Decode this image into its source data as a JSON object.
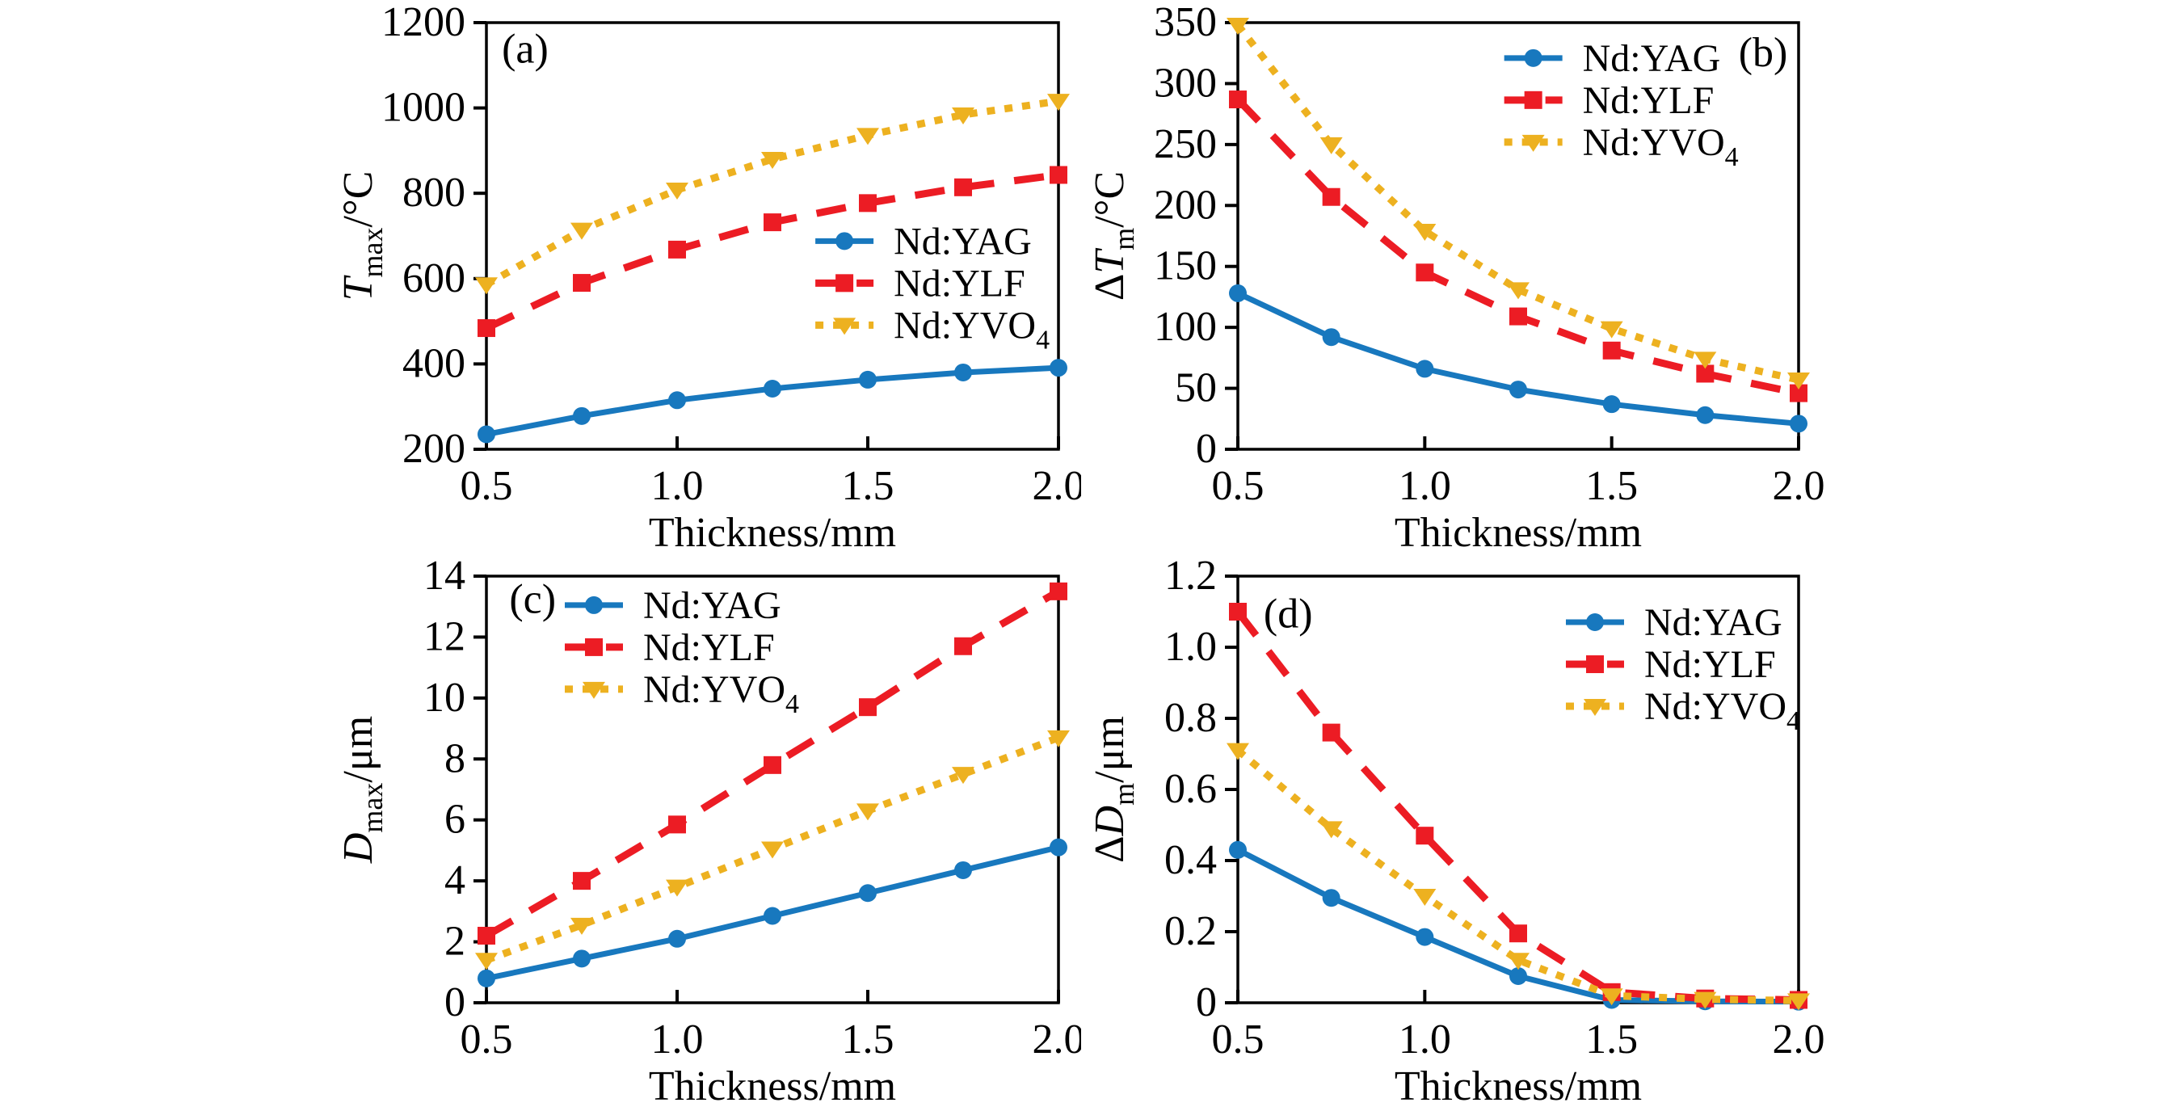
{
  "figure": {
    "background": "#ffffff",
    "description": "Four-panel line chart figure comparing laser crystal properties vs crystal thickness"
  },
  "series_styles": {
    "ndyag": {
      "name": "Nd:YAG",
      "color": "#1878BE",
      "line": "solid",
      "marker": "circle"
    },
    "ndylf": {
      "name": "Nd:YLF",
      "color": "#EC1C24",
      "line": "dashed",
      "marker": "square"
    },
    "ndyvo4": {
      "name": "Nd:YVO4",
      "color": "#EDB120",
      "line": "dotted",
      "marker": "triangle-down"
    }
  },
  "chart_data": [
    {
      "type": "line",
      "panel_label": "(a)",
      "xlabel": "Thickness/mm",
      "ylabel_parts": [
        {
          "text": "T",
          "italic": true
        },
        {
          "text": "max",
          "sub": true
        },
        {
          "text": "/°C"
        }
      ],
      "xlim": [
        0.5,
        2.0
      ],
      "ylim": [
        200,
        1200
      ],
      "xticks": [
        0.5,
        1.0,
        1.5,
        2.0
      ],
      "xtick_labels": [
        "0.5",
        "1.0",
        "1.5",
        "2.0"
      ],
      "yticks": [
        200,
        400,
        600,
        800,
        1000,
        1200
      ],
      "ytick_labels": [
        "200",
        "400",
        "600",
        "800",
        "1000",
        "1200"
      ],
      "grid": false,
      "legend_position_hint": "center-right",
      "legend_pos": {
        "x": 0.575,
        "y": 0.512
      },
      "panel_label_pos": {
        "x": 0.027,
        "y": 0.062
      },
      "x": [
        0.5,
        0.75,
        1.0,
        1.25,
        1.5,
        1.75,
        2.0
      ],
      "series": [
        {
          "key": "ndyag",
          "label_parts": [
            {
              "text": "Nd:YAG"
            }
          ],
          "values": [
            235,
            278,
            315,
            342,
            363,
            380,
            391
          ]
        },
        {
          "key": "ndylf",
          "label_parts": [
            {
              "text": "Nd:YLF"
            }
          ],
          "values": [
            484,
            590,
            668,
            732,
            777,
            814,
            843
          ]
        },
        {
          "key": "ndyvo4",
          "label_parts": [
            {
              "text": "Nd:YVO"
            },
            {
              "text": "4",
              "sub": true
            }
          ],
          "values": [
            586,
            714,
            808,
            880,
            936,
            984,
            1016
          ]
        }
      ]
    },
    {
      "type": "line",
      "panel_label": "(b)",
      "xlabel": "Thickness/mm",
      "ylabel_parts": [
        {
          "text": "Δ"
        },
        {
          "text": "T",
          "italic": true
        },
        {
          "text": "m",
          "sub": true
        },
        {
          "text": "/°C"
        }
      ],
      "xlim": [
        0.5,
        2.0
      ],
      "ylim": [
        0,
        350
      ],
      "xticks": [
        0.5,
        1.0,
        1.5,
        2.0
      ],
      "xtick_labels": [
        "0.5",
        "1.0",
        "1.5",
        "2.0"
      ],
      "yticks": [
        0,
        50,
        100,
        150,
        200,
        250,
        300,
        350
      ],
      "ytick_labels": [
        "0",
        "50",
        "100",
        "150",
        "200",
        "250",
        "300",
        "350"
      ],
      "grid": false,
      "legend_position_hint": "top-center",
      "legend_pos": {
        "x": 0.475,
        "y": 0.083
      },
      "panel_label_pos": {
        "x": 0.893,
        "y": 0.07
      },
      "x": [
        0.5,
        0.75,
        1.0,
        1.25,
        1.5,
        1.75,
        2.0
      ],
      "series": [
        {
          "key": "ndyag",
          "label_parts": [
            {
              "text": "Nd:YAG"
            }
          ],
          "values": [
            128,
            92,
            66,
            49,
            37,
            28,
            21
          ]
        },
        {
          "key": "ndylf",
          "label_parts": [
            {
              "text": "Nd:YLF"
            }
          ],
          "values": [
            287,
            207,
            145,
            109,
            81,
            62,
            46
          ]
        },
        {
          "key": "ndyvo4",
          "label_parts": [
            {
              "text": "Nd:YVO"
            },
            {
              "text": "4",
              "sub": true
            }
          ],
          "values": [
            348,
            250,
            179,
            131,
            99,
            74,
            57
          ]
        }
      ]
    },
    {
      "type": "line",
      "panel_label": "(c)",
      "xlabel": "Thickness/mm",
      "ylabel_parts": [
        {
          "text": "D",
          "italic": true
        },
        {
          "text": "max",
          "sub": true
        },
        {
          "text": "/μm"
        }
      ],
      "xlim": [
        0.5,
        2.0
      ],
      "ylim": [
        0,
        14
      ],
      "xticks": [
        0.5,
        1.0,
        1.5,
        2.0
      ],
      "xtick_labels": [
        "0.5",
        "1.0",
        "1.5",
        "2.0"
      ],
      "yticks": [
        0,
        2,
        4,
        6,
        8,
        10,
        12,
        14
      ],
      "ytick_labels": [
        "0",
        "2",
        "4",
        "6",
        "8",
        "10",
        "12",
        "14"
      ],
      "grid": false,
      "legend_position_hint": "top-left",
      "legend_pos": {
        "x": 0.137,
        "y": 0.068
      },
      "panel_label_pos": {
        "x": 0.04,
        "y": 0.054
      },
      "x": [
        0.5,
        0.75,
        1.0,
        1.25,
        1.5,
        1.75,
        2.0
      ],
      "series": [
        {
          "key": "ndyag",
          "label_parts": [
            {
              "text": "Nd:YAG"
            }
          ],
          "values": [
            0.8,
            1.45,
            2.1,
            2.85,
            3.6,
            4.35,
            5.1
          ]
        },
        {
          "key": "ndylf",
          "label_parts": [
            {
              "text": "Nd:YLF"
            }
          ],
          "values": [
            2.2,
            4.0,
            5.85,
            7.8,
            9.7,
            11.7,
            13.5
          ]
        },
        {
          "key": "ndyvo4",
          "label_parts": [
            {
              "text": "Nd:YVO"
            },
            {
              "text": "4",
              "sub": true
            }
          ],
          "values": [
            1.4,
            2.55,
            3.8,
            5.05,
            6.3,
            7.5,
            8.7
          ]
        }
      ]
    },
    {
      "type": "line",
      "panel_label": "(d)",
      "xlabel": "Thickness/mm",
      "ylabel_parts": [
        {
          "text": "Δ"
        },
        {
          "text": "D",
          "italic": true
        },
        {
          "text": "m",
          "sub": true
        },
        {
          "text": "/μm"
        }
      ],
      "xlim": [
        0.5,
        2.0
      ],
      "ylim": [
        0,
        1.2
      ],
      "xticks": [
        0.5,
        1.0,
        1.5,
        2.0
      ],
      "xtick_labels": [
        "0.5",
        "1.0",
        "1.5",
        "2.0"
      ],
      "yticks": [
        0,
        0.2,
        0.4,
        0.6,
        0.8,
        1.0,
        1.2
      ],
      "ytick_labels": [
        "0",
        "0.2",
        "0.4",
        "0.6",
        "0.8",
        "1.0",
        "1.2"
      ],
      "grid": false,
      "legend_position_hint": "top-right",
      "legend_pos": {
        "x": 0.585,
        "y": 0.108
      },
      "panel_label_pos": {
        "x": 0.046,
        "y": 0.088
      },
      "x": [
        0.5,
        0.75,
        1.0,
        1.25,
        1.5,
        1.75,
        2.0
      ],
      "series": [
        {
          "key": "ndyag",
          "label_parts": [
            {
              "text": "Nd:YAG"
            }
          ],
          "values": [
            0.43,
            0.295,
            0.185,
            0.075,
            0.008,
            0.004,
            0.003
          ]
        },
        {
          "key": "ndylf",
          "label_parts": [
            {
              "text": "Nd:YLF"
            }
          ],
          "values": [
            1.1,
            0.76,
            0.47,
            0.195,
            0.03,
            0.012,
            0.008
          ]
        },
        {
          "key": "ndyvo4",
          "label_parts": [
            {
              "text": "Nd:YVO"
            },
            {
              "text": "4",
              "sub": true
            }
          ],
          "values": [
            0.71,
            0.49,
            0.3,
            0.12,
            0.02,
            0.01,
            0.006
          ]
        }
      ]
    }
  ]
}
